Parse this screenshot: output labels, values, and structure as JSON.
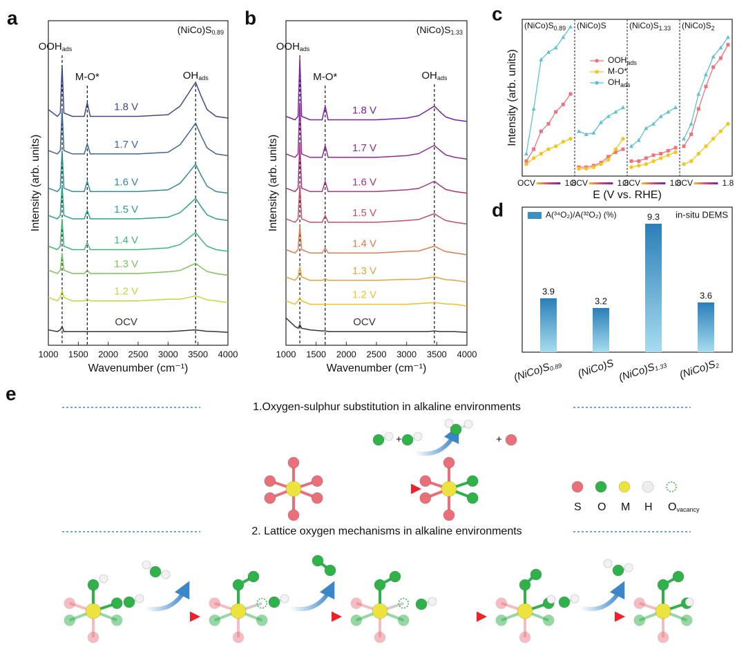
{
  "chart_data": [
    {
      "panel": "a",
      "type": "line",
      "title": {
        "label": "(NiCo)S",
        "sub": "0.89"
      },
      "xlabel": "Wavenumber (cm⁻¹)",
      "ylabel": "Intensity (arb. units)",
      "xlim": [
        1000,
        4000
      ],
      "xticks": [
        1000,
        1500,
        2000,
        2500,
        3000,
        3500,
        4000
      ],
      "ylim": [
        0,
        9.5
      ],
      "x": [
        1000,
        1150,
        1200,
        1230,
        1260,
        1400,
        1600,
        1650,
        1700,
        2000,
        2500,
        3000,
        3200,
        3350,
        3460,
        3550,
        3650,
        3800,
        4000
      ],
      "peaks": [
        {
          "label": "OOH",
          "sub": "ads",
          "x": 1230
        },
        {
          "label": "M-O*",
          "x": 1650
        },
        {
          "label": "OH",
          "sub": "ads",
          "x": 3460
        }
      ],
      "series": [
        {
          "name": "1.8 V",
          "color": "#3a4a8c",
          "values": [
            6.9,
            6.7,
            6.8,
            8.2,
            6.8,
            6.7,
            6.7,
            7.1,
            6.7,
            6.7,
            6.7,
            6.75,
            7.0,
            7.4,
            7.7,
            7.3,
            6.9,
            6.7,
            6.65
          ]
        },
        {
          "name": "1.7 V",
          "color": "#3d6690",
          "values": [
            5.7,
            5.6,
            5.7,
            6.9,
            5.7,
            5.6,
            5.6,
            5.9,
            5.6,
            5.6,
            5.6,
            5.65,
            5.87,
            6.23,
            6.5,
            6.14,
            5.78,
            5.6,
            5.55
          ]
        },
        {
          "name": "1.6 V",
          "color": "#2f8a96",
          "values": [
            4.6,
            4.5,
            4.6,
            5.7,
            4.6,
            4.5,
            4.5,
            4.8,
            4.5,
            4.5,
            4.5,
            4.55,
            4.74,
            5.06,
            5.3,
            4.98,
            4.66,
            4.5,
            4.45
          ]
        },
        {
          "name": "1.5 V",
          "color": "#2aa08a",
          "values": [
            3.8,
            3.7,
            3.8,
            4.7,
            3.8,
            3.7,
            3.7,
            3.95,
            3.7,
            3.7,
            3.7,
            3.75,
            3.88,
            4.12,
            4.3,
            4.06,
            3.82,
            3.7,
            3.65
          ]
        },
        {
          "name": "1.4 V",
          "color": "#3db57a",
          "values": [
            2.9,
            2.8,
            2.9,
            3.7,
            2.9,
            2.8,
            2.8,
            3.0,
            2.8,
            2.8,
            2.8,
            2.85,
            2.95,
            3.15,
            3.3,
            3.1,
            2.9,
            2.8,
            2.75
          ]
        },
        {
          "name": "1.3 V",
          "color": "#78c45a",
          "values": [
            2.2,
            2.1,
            2.2,
            2.7,
            2.2,
            2.1,
            2.1,
            2.2,
            2.1,
            2.1,
            2.1,
            2.15,
            2.19,
            2.31,
            2.4,
            2.28,
            2.16,
            2.1,
            2.05
          ]
        },
        {
          "name": "1.2 V",
          "color": "#c2d83a",
          "values": [
            1.4,
            1.3,
            1.4,
            1.6,
            1.4,
            1.3,
            1.3,
            1.35,
            1.3,
            1.3,
            1.3,
            1.35,
            1.35,
            1.4,
            1.45,
            1.39,
            1.33,
            1.3,
            1.25
          ]
        },
        {
          "name": "OCV",
          "color": "#333333",
          "values": [
            0.45,
            0.4,
            0.45,
            0.55,
            0.4,
            0.4,
            0.4,
            0.4,
            0.4,
            0.4,
            0.4,
            0.4,
            0.42,
            0.44,
            0.45,
            0.43,
            0.41,
            0.4,
            0.38
          ]
        }
      ]
    },
    {
      "panel": "b",
      "type": "line",
      "title": {
        "label": "(NiCo)S",
        "sub": "1.33"
      },
      "xlabel": "Wavenumber (cm⁻¹)",
      "ylabel": "Intensity (arb. units)",
      "xlim": [
        1000,
        4000
      ],
      "xticks": [
        1000,
        1500,
        2000,
        2500,
        3000,
        3500,
        4000
      ],
      "ylim": [
        0,
        9.5
      ],
      "x": [
        1000,
        1150,
        1200,
        1230,
        1260,
        1400,
        1600,
        1650,
        1700,
        2000,
        2500,
        3000,
        3200,
        3350,
        3460,
        3550,
        3650,
        3800,
        4000
      ],
      "peaks": [
        {
          "label": "OOH",
          "sub": "ads",
          "x": 1230
        },
        {
          "label": "M-O*",
          "x": 1650
        },
        {
          "label": "OH",
          "sub": "ads",
          "x": 3460
        }
      ],
      "series": [
        {
          "name": "1.8 V",
          "color": "#7a1fa8",
          "values": [
            6.7,
            6.6,
            6.7,
            8.4,
            6.7,
            6.6,
            6.6,
            7.0,
            6.6,
            6.6,
            6.6,
            6.65,
            6.72,
            6.88,
            7.0,
            6.84,
            6.68,
            6.6,
            6.55
          ]
        },
        {
          "name": "1.7 V",
          "color": "#902a94",
          "values": [
            5.6,
            5.5,
            5.6,
            7.1,
            5.6,
            5.5,
            5.5,
            5.85,
            5.5,
            5.5,
            5.5,
            5.55,
            5.61,
            5.75,
            5.85,
            5.71,
            5.57,
            5.5,
            5.45
          ]
        },
        {
          "name": "1.6 V",
          "color": "#a8327c",
          "values": [
            4.6,
            4.5,
            4.6,
            5.9,
            4.6,
            4.5,
            4.5,
            4.8,
            4.5,
            4.5,
            4.5,
            4.55,
            4.59,
            4.71,
            4.8,
            4.68,
            4.56,
            4.5,
            4.45
          ]
        },
        {
          "name": "1.5 V",
          "color": "#c84d63",
          "values": [
            3.7,
            3.6,
            3.7,
            4.7,
            3.7,
            3.6,
            3.6,
            3.8,
            3.6,
            3.6,
            3.6,
            3.65,
            3.68,
            3.78,
            3.85,
            3.75,
            3.65,
            3.6,
            3.55
          ]
        },
        {
          "name": "1.4 V",
          "color": "#e07a4a",
          "values": [
            2.8,
            2.7,
            2.8,
            3.5,
            2.8,
            2.7,
            2.7,
            2.85,
            2.7,
            2.7,
            2.7,
            2.75,
            2.76,
            2.84,
            2.9,
            2.82,
            2.74,
            2.7,
            2.65
          ]
        },
        {
          "name": "1.3 V",
          "color": "#eaa03a",
          "values": [
            2.0,
            1.9,
            2.0,
            2.3,
            2.0,
            1.9,
            1.9,
            1.95,
            1.9,
            1.9,
            1.9,
            1.93,
            1.93,
            1.97,
            2.0,
            1.96,
            1.92,
            1.9,
            1.85
          ]
        },
        {
          "name": "1.2 V",
          "color": "#efc020",
          "values": [
            1.3,
            1.2,
            1.3,
            1.4,
            1.3,
            1.2,
            1.2,
            1.2,
            1.2,
            1.2,
            1.2,
            1.2,
            1.22,
            1.24,
            1.25,
            1.23,
            1.21,
            1.2,
            1.15
          ]
        },
        {
          "name": "OCV",
          "color": "#333333",
          "values": [
            0.8,
            0.55,
            0.5,
            0.6,
            0.5,
            0.45,
            0.42,
            0.42,
            0.4,
            0.4,
            0.4,
            0.4,
            0.4,
            0.4,
            0.42,
            0.4,
            0.4,
            0.4,
            0.38
          ]
        }
      ]
    },
    {
      "panel": "c",
      "type": "line",
      "xlabel": "E (V vs. RHE)",
      "ylabel": "Intensity (arb. units)",
      "categories": [
        "OCV",
        null,
        null,
        null,
        null,
        null,
        "1.8"
      ],
      "ylim": [
        0,
        10.5
      ],
      "series": [
        {
          "name": {
            "label": "OOH",
            "sub": "ads"
          },
          "color": "#f2707e",
          "marker": "square"
        },
        {
          "name": {
            "label": "M-O*"
          },
          "color": "#f5c518",
          "marker": "circle"
        },
        {
          "name": {
            "label": "OH",
            "sub": "ads"
          },
          "color": "#5bc0d8",
          "marker": "triangle"
        }
      ],
      "subplots": [
        {
          "title": {
            "label": "(NiCo)S",
            "sub": "0.89"
          },
          "values": [
            [
              1.0,
              1.8,
              3.0,
              3.5,
              4.3,
              4.8,
              5.5
            ],
            [
              0.8,
              1.2,
              1.5,
              1.8,
              2.0,
              2.3,
              2.5
            ],
            [
              1.5,
              4.5,
              7.8,
              8.3,
              8.6,
              9.3,
              10.0
            ]
          ]
        },
        {
          "title": {
            "label": "(NiCo)S"
          },
          "values": [
            [
              0.6,
              0.6,
              0.7,
              0.9,
              1.3,
              1.6,
              1.8
            ],
            [
              0.5,
              0.5,
              0.6,
              0.8,
              1.1,
              1.8,
              2.5
            ],
            [
              3.0,
              2.8,
              2.9,
              3.6,
              4.0,
              4.3,
              4.6
            ]
          ]
        },
        {
          "title": {
            "label": "(NiCo)S",
            "sub": "1.33"
          },
          "values": [
            [
              1.0,
              1.0,
              1.2,
              1.4,
              1.5,
              1.7,
              1.9
            ],
            [
              0.6,
              0.7,
              0.8,
              1.0,
              1.2,
              1.4,
              1.6
            ],
            [
              2.0,
              2.4,
              3.2,
              3.5,
              4.0,
              4.3,
              4.6
            ]
          ]
        },
        {
          "title": {
            "label": "(NiCo)S",
            "sub": "2"
          },
          "values": [
            [
              2.0,
              2.8,
              4.5,
              6.0,
              7.3,
              7.9,
              8.8
            ],
            [
              0.8,
              1.0,
              1.5,
              2.0,
              2.5,
              3.0,
              3.5
            ],
            [
              2.5,
              3.5,
              5.5,
              6.8,
              8.0,
              8.6,
              9.3
            ]
          ]
        }
      ]
    },
    {
      "panel": "d",
      "type": "bar",
      "legend": "A(³⁴O₂)/A(³²O₂) (%)",
      "annotation": "in-situ DEMS",
      "color": "#3a8fc2",
      "ylim": [
        0,
        10.5
      ],
      "categories": [
        {
          "label": "(NiCo)S",
          "sub": "0.89"
        },
        {
          "label": "(NiCo)S"
        },
        {
          "label": "(NiCo)S",
          "sub": "1.33"
        },
        {
          "label": "(NiCo)S",
          "sub": "2"
        }
      ],
      "values": [
        3.9,
        3.2,
        9.3,
        3.6
      ]
    }
  ],
  "scheme": {
    "panel": "e",
    "step1": "1.Oxygen-sulphur substitution in alkaline environments",
    "step2": "2. Lattice oxygen mechanisms in alkaline environments",
    "legend": [
      {
        "label": "S",
        "color": "#ea6f78"
      },
      {
        "label": "O",
        "color": "#2fb24a"
      },
      {
        "label": "M",
        "color": "#ece33e"
      },
      {
        "label": "H",
        "color": "#eeeeee"
      },
      {
        "label": "O",
        "sub": "vacancy",
        "color": "none"
      }
    ]
  }
}
